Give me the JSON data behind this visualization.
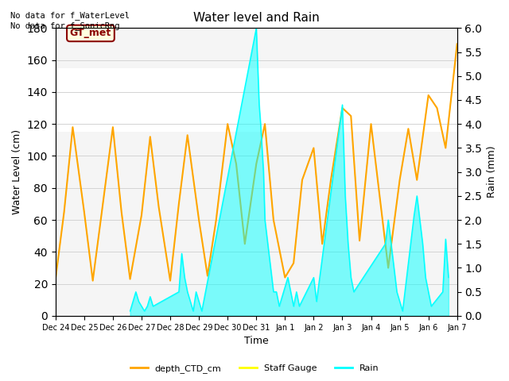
{
  "title": "Water level and Rain",
  "xlabel": "Time",
  "ylabel_left": "Water Level (cm)",
  "ylabel_right": "Rain (mm)",
  "annotation_text": "No data for f_WaterLevel\nNo data for f_SonicRng",
  "gt_met_label": "GT_met",
  "ylim_left": [
    0,
    180
  ],
  "ylim_right": [
    0,
    6.0
  ],
  "yticks_left": [
    0,
    20,
    40,
    60,
    80,
    100,
    120,
    140,
    160,
    180
  ],
  "yticks_right": [
    0.0,
    0.5,
    1.0,
    1.5,
    2.0,
    2.5,
    3.0,
    3.5,
    4.0,
    4.5,
    5.0,
    5.5,
    6.0
  ],
  "xtick_labels": [
    "Dec 24",
    "Dec 25",
    "Dec 26",
    "Dec 27",
    "Dec 28",
    "Dec 29",
    "Dec 30",
    "Dec 31",
    "Jan 1",
    "Jan 2",
    "Jan 3",
    "Jan 4",
    "Jan 5",
    "Jan 6",
    "Jan 7"
  ],
  "shade_band": [
    115,
    155
  ],
  "color_ctd": "#FFA500",
  "color_staff": "#FFFF00",
  "color_rain": "#00FFFF",
  "legend_labels": [
    "depth_CTD_cm",
    "Staff Gauge",
    "Rain"
  ],
  "bg_color": "#f5f5f5",
  "ctd_x": [
    0,
    0.3,
    0.6,
    1.0,
    1.3,
    1.6,
    2.0,
    2.3,
    2.6,
    3.0,
    3.3,
    3.6,
    4.0,
    4.3,
    4.6,
    5.0,
    5.3,
    5.6,
    6.0,
    6.3,
    6.6,
    7.0,
    7.3,
    7.6,
    8.0,
    8.3,
    8.6,
    9.0,
    9.3,
    9.6,
    10.0,
    10.3,
    10.6,
    11.0,
    11.3,
    11.6,
    12.0,
    12.3,
    12.6,
    13.0,
    13.3,
    13.6,
    14.0
  ],
  "ctd_y": [
    23,
    65,
    118,
    65,
    22,
    63,
    118,
    65,
    23,
    63,
    112,
    68,
    22,
    70,
    113,
    60,
    25,
    60,
    120,
    95,
    45,
    95,
    120,
    60,
    24,
    33,
    85,
    105,
    45,
    85,
    130,
    125,
    47,
    120,
    75,
    30,
    85,
    117,
    85,
    138,
    130,
    105,
    170
  ],
  "rain_x": [
    2.6,
    2.7,
    2.8,
    2.9,
    3.1,
    3.2,
    3.3,
    3.4,
    4.3,
    4.4,
    4.5,
    4.6,
    4.7,
    4.8,
    4.9,
    5.0,
    5.1,
    7.0,
    7.05,
    7.1,
    7.15,
    7.2,
    7.25,
    7.3,
    7.4,
    7.5,
    7.6,
    7.7,
    7.8,
    8.1,
    8.2,
    8.3,
    8.4,
    8.5,
    9.0,
    9.1,
    10.0,
    10.1,
    10.2,
    10.3,
    10.4,
    11.5,
    11.6,
    11.7,
    11.8,
    11.9,
    12.0,
    12.1,
    12.5,
    12.6,
    12.7,
    12.8,
    12.9,
    13.0,
    13.1,
    13.5,
    13.6,
    13.7
  ],
  "rain_y": [
    0.1,
    0.3,
    0.5,
    0.3,
    0.1,
    0.2,
    0.4,
    0.2,
    0.5,
    1.3,
    0.8,
    0.5,
    0.3,
    0.1,
    0.5,
    0.3,
    0.1,
    6.0,
    5.2,
    4.4,
    4.0,
    3.5,
    3.0,
    2.0,
    1.5,
    1.0,
    0.5,
    0.5,
    0.2,
    0.8,
    0.5,
    0.2,
    0.5,
    0.2,
    0.8,
    0.3,
    4.4,
    2.5,
    1.5,
    0.8,
    0.5,
    1.5,
    2.0,
    1.5,
    1.0,
    0.5,
    0.3,
    0.1,
    2.1,
    2.5,
    2.0,
    1.5,
    0.8,
    0.5,
    0.2,
    0.5,
    1.6,
    0.8
  ]
}
